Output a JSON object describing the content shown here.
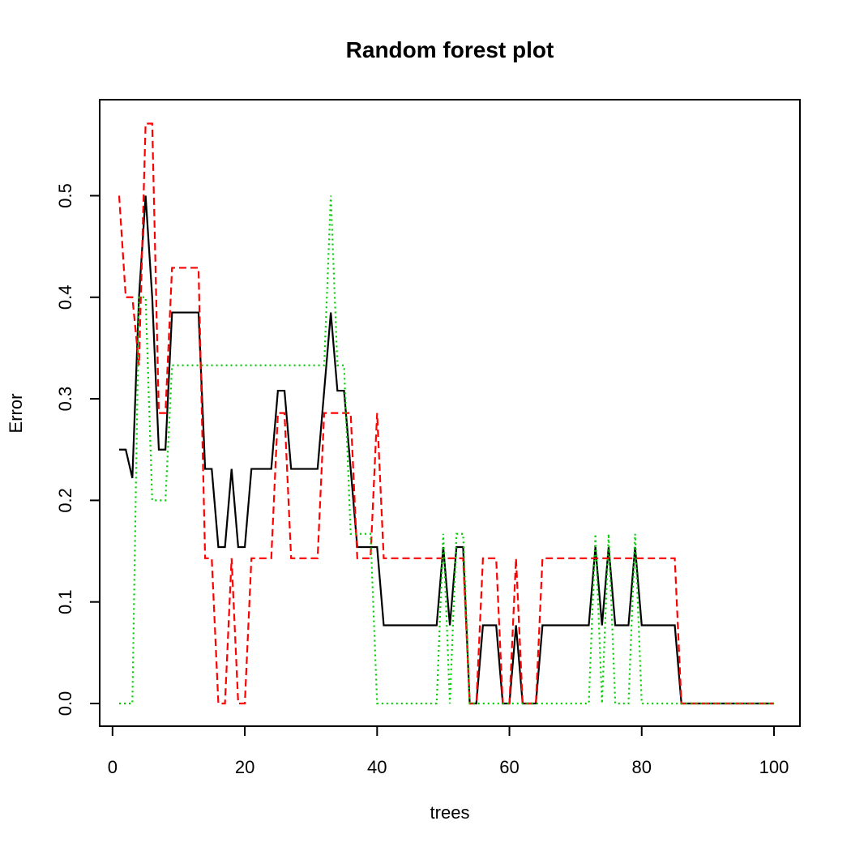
{
  "chart_data": {
    "type": "line",
    "title": "Random forest plot",
    "xlabel": "trees",
    "ylabel": "Error",
    "xlim": [
      1,
      100
    ],
    "ylim": [
      0,
      0.5714
    ],
    "xticks": [
      0,
      20,
      40,
      60,
      80,
      100
    ],
    "xtick_labels": [
      "0",
      "20",
      "40",
      "60",
      "80",
      "100"
    ],
    "yticks": [
      0,
      0.1,
      0.2,
      0.3,
      0.4,
      0.5
    ],
    "ytick_labels": [
      "0.0",
      "0.1",
      "0.2",
      "0.3",
      "0.4",
      "0.5"
    ],
    "grid": false,
    "series": [
      {
        "key": "oob",
        "color": "#000000",
        "style": "solid",
        "x": [
          1,
          2,
          3,
          4,
          5,
          6,
          7,
          8,
          9,
          10,
          11,
          12,
          13,
          14,
          15,
          16,
          17,
          18,
          19,
          20,
          21,
          22,
          23,
          24,
          25,
          26,
          27,
          28,
          29,
          30,
          31,
          32,
          33,
          34,
          35,
          36,
          37,
          38,
          39,
          40,
          41,
          42,
          43,
          44,
          45,
          46,
          47,
          48,
          49,
          50,
          51,
          52,
          53,
          54,
          55,
          56,
          57,
          58,
          59,
          60,
          61,
          62,
          63,
          64,
          65,
          66,
          67,
          68,
          69,
          70,
          71,
          72,
          73,
          74,
          75,
          76,
          77,
          78,
          79,
          80,
          81,
          82,
          83,
          84,
          85,
          86,
          87,
          88,
          89,
          90,
          91,
          92,
          93,
          94,
          95,
          96,
          97,
          98,
          99,
          100
        ],
        "values": [
          0.25,
          0.25,
          0.222,
          0.4,
          0.5,
          0.4,
          0.25,
          0.25,
          0.385,
          0.385,
          0.385,
          0.385,
          0.385,
          0.231,
          0.231,
          0.154,
          0.154,
          0.231,
          0.154,
          0.154,
          0.231,
          0.231,
          0.231,
          0.231,
          0.308,
          0.308,
          0.231,
          0.231,
          0.231,
          0.231,
          0.231,
          0.308,
          0.385,
          0.308,
          0.308,
          0.231,
          0.154,
          0.154,
          0.154,
          0.154,
          0.077,
          0.077,
          0.077,
          0.077,
          0.077,
          0.077,
          0.077,
          0.077,
          0.077,
          0.154,
          0.077,
          0.154,
          0.154,
          0,
          0,
          0.077,
          0.077,
          0.077,
          0,
          0,
          0.077,
          0,
          0,
          0,
          0.077,
          0.077,
          0.077,
          0.077,
          0.077,
          0.077,
          0.077,
          0.077,
          0.154,
          0.077,
          0.154,
          0.077,
          0.077,
          0.077,
          0.154,
          0.077,
          0.077,
          0.077,
          0.077,
          0.077,
          0.077,
          0,
          0,
          0,
          0,
          0,
          0,
          0,
          0,
          0,
          0,
          0,
          0,
          0,
          0,
          0
        ]
      },
      {
        "key": "class1",
        "color": "#ff0000",
        "style": "dashed",
        "x": [
          1,
          2,
          3,
          4,
          5,
          6,
          7,
          8,
          9,
          10,
          11,
          12,
          13,
          14,
          15,
          16,
          17,
          18,
          19,
          20,
          21,
          22,
          23,
          24,
          25,
          26,
          27,
          28,
          29,
          30,
          31,
          32,
          33,
          34,
          35,
          36,
          37,
          38,
          39,
          40,
          41,
          42,
          43,
          44,
          45,
          46,
          47,
          48,
          49,
          50,
          51,
          52,
          53,
          54,
          55,
          56,
          57,
          58,
          59,
          60,
          61,
          62,
          63,
          64,
          65,
          66,
          67,
          68,
          69,
          70,
          71,
          72,
          73,
          74,
          75,
          76,
          77,
          78,
          79,
          80,
          81,
          82,
          83,
          84,
          85,
          86,
          87,
          88,
          89,
          90,
          91,
          92,
          93,
          94,
          95,
          96,
          97,
          98,
          99,
          100
        ],
        "values": [
          0.5,
          0.4,
          0.4,
          0.333,
          0.571,
          0.571,
          0.286,
          0.286,
          0.429,
          0.429,
          0.429,
          0.429,
          0.429,
          0.143,
          0.143,
          0,
          0,
          0.143,
          0,
          0,
          0.143,
          0.143,
          0.143,
          0.143,
          0.286,
          0.286,
          0.143,
          0.143,
          0.143,
          0.143,
          0.143,
          0.286,
          0.286,
          0.286,
          0.286,
          0.286,
          0.143,
          0.143,
          0.143,
          0.286,
          0.143,
          0.143,
          0.143,
          0.143,
          0.143,
          0.143,
          0.143,
          0.143,
          0.143,
          0.143,
          0.143,
          0.143,
          0.143,
          0,
          0,
          0.143,
          0.143,
          0.143,
          0,
          0,
          0.143,
          0,
          0,
          0,
          0.143,
          0.143,
          0.143,
          0.143,
          0.143,
          0.143,
          0.143,
          0.143,
          0.143,
          0.143,
          0.143,
          0.143,
          0.143,
          0.143,
          0.143,
          0.143,
          0.143,
          0.143,
          0.143,
          0.143,
          0.143,
          0,
          0,
          0,
          0,
          0,
          0,
          0,
          0,
          0,
          0,
          0,
          0,
          0,
          0,
          0
        ]
      },
      {
        "key": "class2",
        "color": "#00cd00",
        "style": "dotted",
        "x": [
          1,
          2,
          3,
          4,
          5,
          6,
          7,
          8,
          9,
          10,
          11,
          12,
          13,
          14,
          15,
          16,
          17,
          18,
          19,
          20,
          21,
          22,
          23,
          24,
          25,
          26,
          27,
          28,
          29,
          30,
          31,
          32,
          33,
          34,
          35,
          36,
          37,
          38,
          39,
          40,
          41,
          42,
          43,
          44,
          45,
          46,
          47,
          48,
          49,
          50,
          51,
          52,
          53,
          54,
          55,
          56,
          57,
          58,
          59,
          60,
          61,
          62,
          63,
          64,
          65,
          66,
          67,
          68,
          69,
          70,
          71,
          72,
          73,
          74,
          75,
          76,
          77,
          78,
          79,
          80,
          81,
          82,
          83,
          84,
          85,
          86,
          87,
          88,
          89,
          90,
          91,
          92,
          93,
          94,
          95,
          96,
          97,
          98,
          99,
          100
        ],
        "values": [
          0,
          0,
          0,
          0.4,
          0.4,
          0.2,
          0.2,
          0.2,
          0.333,
          0.333,
          0.333,
          0.333,
          0.333,
          0.333,
          0.333,
          0.333,
          0.333,
          0.333,
          0.333,
          0.333,
          0.333,
          0.333,
          0.333,
          0.333,
          0.333,
          0.333,
          0.333,
          0.333,
          0.333,
          0.333,
          0.333,
          0.333,
          0.5,
          0.333,
          0.333,
          0.167,
          0.167,
          0.167,
          0.167,
          0,
          0,
          0,
          0,
          0,
          0,
          0,
          0,
          0,
          0,
          0.167,
          0,
          0.167,
          0.167,
          0,
          0,
          0,
          0,
          0,
          0,
          0,
          0,
          0,
          0,
          0,
          0,
          0,
          0,
          0,
          0,
          0,
          0,
          0,
          0.167,
          0,
          0.167,
          0,
          0,
          0,
          0.167,
          0,
          0,
          0,
          0,
          0,
          0,
          0,
          0,
          0,
          0,
          0,
          0,
          0,
          0,
          0,
          0,
          0,
          0,
          0,
          0,
          0
        ]
      }
    ]
  }
}
